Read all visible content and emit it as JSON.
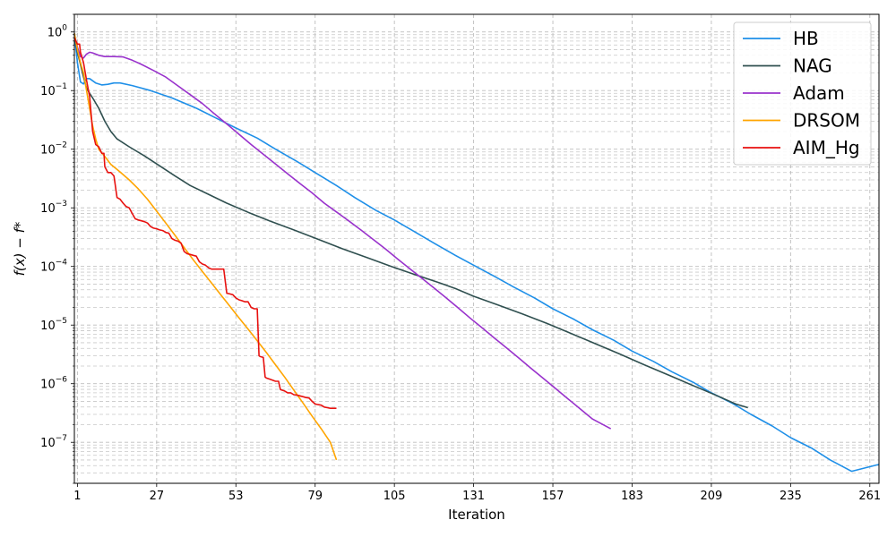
{
  "chart_data": {
    "type": "line",
    "xlabel": "Iteration",
    "ylabel": "f(x) − f*",
    "xlim": [
      0,
      264
    ],
    "ylim": [
      2e-08,
      2
    ],
    "yscale": "log",
    "x_ticks": [
      1,
      27,
      53,
      79,
      105,
      131,
      157,
      183,
      209,
      235,
      261
    ],
    "y_ticks": [
      {
        "exp": "0",
        "value": 1
      },
      {
        "exp": "−1",
        "value": 0.1
      },
      {
        "exp": "−2",
        "value": 0.01
      },
      {
        "exp": "−3",
        "value": 0.001
      },
      {
        "exp": "−4",
        "value": 0.0001
      },
      {
        "exp": "−5",
        "value": 1e-05
      },
      {
        "exp": "−6",
        "value": 1e-06
      },
      {
        "exp": "−7",
        "value": 1e-07
      }
    ],
    "grid": true,
    "legend_position": "top-right",
    "series": [
      {
        "name": "HB",
        "color": "#1e8fe8",
        "points": [
          [
            0,
            0.95
          ],
          [
            1,
            0.3
          ],
          [
            2,
            0.14
          ],
          [
            3,
            0.13
          ],
          [
            4,
            0.16
          ],
          [
            5,
            0.16
          ],
          [
            7,
            0.135
          ],
          [
            9,
            0.125
          ],
          [
            11,
            0.128
          ],
          [
            13,
            0.135
          ],
          [
            15,
            0.135
          ],
          [
            19,
            0.122
          ],
          [
            25,
            0.1
          ],
          [
            32,
            0.075
          ],
          [
            40,
            0.05
          ],
          [
            47,
            0.033
          ],
          [
            53,
            0.023
          ],
          [
            60,
            0.0155
          ],
          [
            66,
            0.01
          ],
          [
            73,
            0.0062
          ],
          [
            79,
            0.004
          ],
          [
            86,
            0.0024
          ],
          [
            92,
            0.0015
          ],
          [
            99,
            0.0009
          ],
          [
            105,
            0.00062
          ],
          [
            112,
            0.00038
          ],
          [
            118,
            0.00025
          ],
          [
            125,
            0.000155
          ],
          [
            131,
            0.000105
          ],
          [
            138,
            6.7e-05
          ],
          [
            144,
            4.5e-05
          ],
          [
            151,
            2.9e-05
          ],
          [
            157,
            1.9e-05
          ],
          [
            164,
            1.25e-05
          ],
          [
            170,
            8.3e-06
          ],
          [
            177,
            5.5e-06
          ],
          [
            183,
            3.6e-06
          ],
          [
            190,
            2.4e-06
          ],
          [
            196,
            1.6e-06
          ],
          [
            203,
            1.06e-06
          ],
          [
            209,
            7e-07
          ],
          [
            216,
            4.6e-07
          ],
          [
            222,
            3e-07
          ],
          [
            229,
            1.9e-07
          ],
          [
            235,
            1.2e-07
          ],
          [
            242,
            7.9e-08
          ],
          [
            248,
            5e-08
          ],
          [
            255,
            3.2e-08
          ],
          [
            264,
            4.2e-08
          ]
        ]
      },
      {
        "name": "NAG",
        "color": "#2f4f4f",
        "points": [
          [
            0,
            0.9
          ],
          [
            1,
            0.45
          ],
          [
            2,
            0.28
          ],
          [
            3,
            0.17
          ],
          [
            4,
            0.11
          ],
          [
            5,
            0.09
          ],
          [
            6,
            0.075
          ],
          [
            8,
            0.05
          ],
          [
            10,
            0.03
          ],
          [
            12,
            0.02
          ],
          [
            14,
            0.015
          ],
          [
            18,
            0.011
          ],
          [
            23,
            0.0077
          ],
          [
            28,
            0.0052
          ],
          [
            33,
            0.0035
          ],
          [
            38,
            0.0024
          ],
          [
            44,
            0.0017
          ],
          [
            50,
            0.0012
          ],
          [
            57,
            0.00084
          ],
          [
            64,
            0.0006
          ],
          [
            72,
            0.00042
          ],
          [
            80,
            0.00029
          ],
          [
            88,
            0.0002
          ],
          [
            96,
            0.000142
          ],
          [
            104,
            0.0001
          ],
          [
            112,
            7.2e-05
          ],
          [
            120,
            5.2e-05
          ],
          [
            125,
            4.2e-05
          ],
          [
            131,
            3.1e-05
          ],
          [
            139,
            2.2e-05
          ],
          [
            147,
            1.55e-05
          ],
          [
            155,
            1.07e-05
          ],
          [
            163,
            7.2e-06
          ],
          [
            171,
            4.8e-06
          ],
          [
            179,
            3.2e-06
          ],
          [
            187,
            2.1e-06
          ],
          [
            195,
            1.4e-06
          ],
          [
            203,
            9.3e-07
          ],
          [
            211,
            6.2e-07
          ],
          [
            217,
            4.5e-07
          ],
          [
            221,
            3.9e-07
          ]
        ]
      },
      {
        "name": "Adam",
        "color": "#9932cc",
        "points": [
          [
            0,
            0.9
          ],
          [
            1,
            0.55
          ],
          [
            2,
            0.38
          ],
          [
            3,
            0.36
          ],
          [
            4,
            0.42
          ],
          [
            5,
            0.45
          ],
          [
            6,
            0.44
          ],
          [
            8,
            0.4
          ],
          [
            10,
            0.38
          ],
          [
            13,
            0.38
          ],
          [
            16,
            0.375
          ],
          [
            19,
            0.33
          ],
          [
            22,
            0.28
          ],
          [
            26,
            0.22
          ],
          [
            30,
            0.17
          ],
          [
            34,
            0.12
          ],
          [
            38,
            0.085
          ],
          [
            42,
            0.06
          ],
          [
            46,
            0.04
          ],
          [
            50,
            0.027
          ],
          [
            54,
            0.018
          ],
          [
            58,
            0.012
          ],
          [
            62,
            0.0082
          ],
          [
            66,
            0.0056
          ],
          [
            70,
            0.0038
          ],
          [
            74,
            0.0026
          ],
          [
            78,
            0.0018
          ],
          [
            82,
            0.0012
          ],
          [
            86,
            0.00085
          ],
          [
            90,
            0.0006
          ],
          [
            94,
            0.00042
          ],
          [
            98,
            0.00029
          ],
          [
            102,
            0.0002
          ],
          [
            106,
            0.000135
          ],
          [
            110,
            9.2e-05
          ],
          [
            114,
            6.3e-05
          ],
          [
            118,
            4.3e-05
          ],
          [
            122,
            2.9e-05
          ],
          [
            126,
            1.95e-05
          ],
          [
            130,
            1.3e-05
          ],
          [
            134,
            8.8e-06
          ],
          [
            138,
            5.9e-06
          ],
          [
            142,
            4e-06
          ],
          [
            146,
            2.7e-06
          ],
          [
            150,
            1.8e-06
          ],
          [
            154,
            1.22e-06
          ],
          [
            158,
            8.2e-07
          ],
          [
            162,
            5.5e-07
          ],
          [
            166,
            3.7e-07
          ],
          [
            170,
            2.5e-07
          ],
          [
            176,
            1.7e-07
          ]
        ]
      },
      {
        "name": "DRSOM",
        "color": "#ffa500",
        "points": [
          [
            0,
            0.95
          ],
          [
            1,
            0.5
          ],
          [
            2,
            0.3
          ],
          [
            3,
            0.2
          ],
          [
            4,
            0.1
          ],
          [
            5,
            0.05
          ],
          [
            6,
            0.025
          ],
          [
            7,
            0.015
          ],
          [
            8,
            0.01
          ],
          [
            10,
            0.0075
          ],
          [
            12,
            0.0055
          ],
          [
            15,
            0.0041
          ],
          [
            18,
            0.003
          ],
          [
            21,
            0.0021
          ],
          [
            24,
            0.0014
          ],
          [
            27,
            0.00088
          ],
          [
            30,
            0.00055
          ],
          [
            33,
            0.00034
          ],
          [
            36,
            0.00021
          ],
          [
            39,
            0.00013
          ],
          [
            42,
            8.2e-05
          ],
          [
            45,
            5.2e-05
          ],
          [
            48,
            3.3e-05
          ],
          [
            51,
            2.1e-05
          ],
          [
            54,
            1.33e-05
          ],
          [
            57,
            8.5e-06
          ],
          [
            60,
            5.4e-06
          ],
          [
            63,
            3.4e-06
          ],
          [
            66,
            2.1e-06
          ],
          [
            69,
            1.3e-06
          ],
          [
            72,
            7.8e-07
          ],
          [
            75,
            4.7e-07
          ],
          [
            78,
            2.8e-07
          ],
          [
            81,
            1.7e-07
          ],
          [
            84,
            1e-07
          ],
          [
            86,
            5e-08
          ]
        ]
      },
      {
        "name": "AIM_Hg",
        "color": "#e8110f",
        "points": [
          [
            0,
            0.8
          ],
          [
            1,
            0.62
          ],
          [
            1.7,
            0.62
          ],
          [
            2,
            0.45
          ],
          [
            3,
            0.3
          ],
          [
            4,
            0.15
          ],
          [
            5,
            0.08
          ],
          [
            6,
            0.02
          ],
          [
            7,
            0.012
          ],
          [
            8,
            0.011
          ],
          [
            9,
            0.0085
          ],
          [
            9.7,
            0.0085
          ],
          [
            10,
            0.005
          ],
          [
            11,
            0.004
          ],
          [
            12,
            0.004
          ],
          [
            13,
            0.0035
          ],
          [
            14,
            0.0015
          ],
          [
            15,
            0.0014
          ],
          [
            16,
            0.0012
          ],
          [
            17,
            0.00105
          ],
          [
            18,
            0.001
          ],
          [
            19,
            0.0008
          ],
          [
            20,
            0.00065
          ],
          [
            21,
            0.00062
          ],
          [
            22,
            0.0006
          ],
          [
            23,
            0.00058
          ],
          [
            24,
            0.00055
          ],
          [
            25,
            0.00048
          ],
          [
            26,
            0.00045
          ],
          [
            27,
            0.00044
          ],
          [
            28,
            0.00042
          ],
          [
            29,
            0.00041
          ],
          [
            30,
            0.00038
          ],
          [
            31,
            0.00037
          ],
          [
            32,
            0.0003
          ],
          [
            33,
            0.00028
          ],
          [
            34,
            0.00027
          ],
          [
            35,
            0.00025
          ],
          [
            36,
            0.00018
          ],
          [
            37,
            0.000165
          ],
          [
            38,
            0.00016
          ],
          [
            39,
            0.000155
          ],
          [
            40,
            0.00015
          ],
          [
            41,
            0.00012
          ],
          [
            42,
            0.00011
          ],
          [
            43,
            0.000105
          ],
          [
            44,
            9.5e-05
          ],
          [
            45,
            9e-05
          ],
          [
            46,
            9e-05
          ],
          [
            47,
            9e-05
          ],
          [
            48,
            9e-05
          ],
          [
            49,
            9e-05
          ],
          [
            50,
            3.5e-05
          ],
          [
            51,
            3.4e-05
          ],
          [
            52,
            3.3e-05
          ],
          [
            53,
            2.9e-05
          ],
          [
            54,
            2.7e-05
          ],
          [
            55,
            2.6e-05
          ],
          [
            56,
            2.5e-05
          ],
          [
            57,
            2.5e-05
          ],
          [
            58,
            2e-05
          ],
          [
            59,
            1.9e-05
          ],
          [
            60,
            1.9e-05
          ],
          [
            60.6,
            3e-06
          ],
          [
            61,
            2.9e-06
          ],
          [
            62,
            2.8e-06
          ],
          [
            62.6,
            1.3e-06
          ],
          [
            63,
            1.25e-06
          ],
          [
            64,
            1.2e-06
          ],
          [
            65,
            1.15e-06
          ],
          [
            66,
            1.1e-06
          ],
          [
            67,
            1.1e-06
          ],
          [
            67.6,
            8e-07
          ],
          [
            68,
            7.8e-07
          ],
          [
            69,
            7.5e-07
          ],
          [
            70,
            7e-07
          ],
          [
            71,
            7e-07
          ],
          [
            72,
            6.5e-07
          ],
          [
            73,
            6.4e-07
          ],
          [
            74,
            6.2e-07
          ],
          [
            75,
            6e-07
          ],
          [
            76,
            5.8e-07
          ],
          [
            77,
            5.7e-07
          ],
          [
            78,
            5e-07
          ],
          [
            79,
            4.5e-07
          ],
          [
            80,
            4.4e-07
          ],
          [
            81,
            4.3e-07
          ],
          [
            82,
            4e-07
          ],
          [
            83,
            3.9e-07
          ],
          [
            84,
            3.8e-07
          ],
          [
            85,
            3.8e-07
          ],
          [
            86,
            3.8e-07
          ]
        ]
      }
    ]
  }
}
